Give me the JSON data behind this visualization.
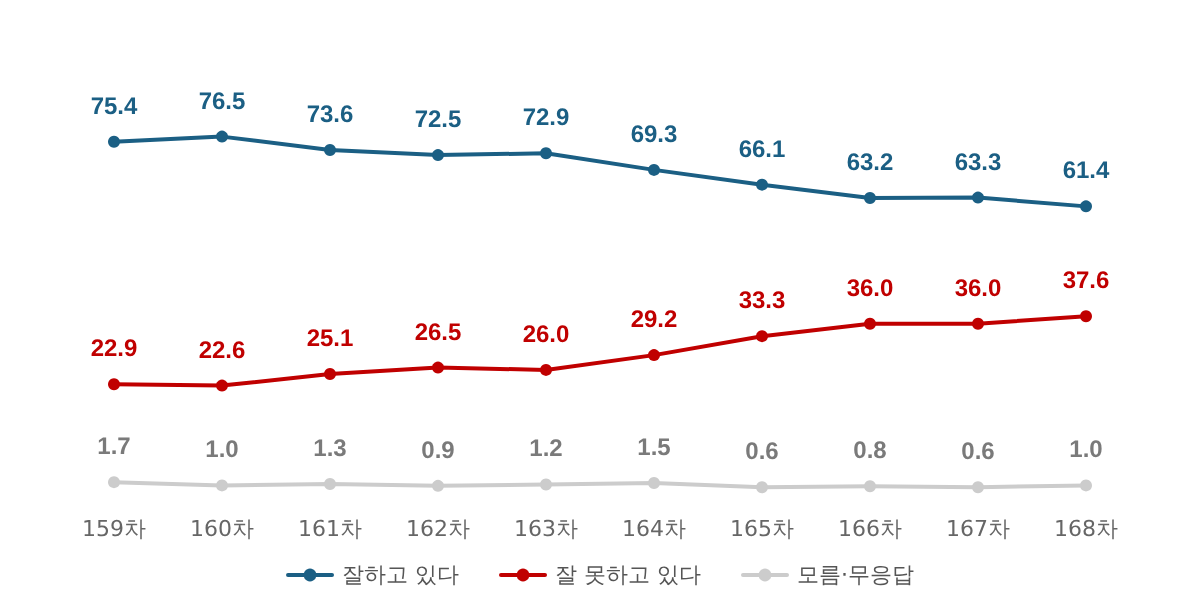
{
  "chart_data": {
    "type": "line",
    "categories": [
      "159차",
      "160차",
      "161차",
      "162차",
      "163차",
      "164차",
      "165차",
      "166차",
      "167차",
      "168차"
    ],
    "series": [
      {
        "name": "잘하고 있다",
        "color": "#1b5f84",
        "values": [
          75.4,
          76.5,
          73.6,
          72.5,
          72.9,
          69.3,
          66.1,
          63.2,
          63.3,
          61.4
        ],
        "value_labels": [
          "75.4",
          "76.5",
          "73.6",
          "72.5",
          "72.9",
          "69.3",
          "66.1",
          "63.2",
          "63.3",
          "61.4"
        ]
      },
      {
        "name": "잘 못하고 있다",
        "color": "#c00000",
        "values": [
          22.9,
          22.6,
          25.1,
          26.5,
          26.0,
          29.2,
          33.3,
          36.0,
          36.0,
          37.6
        ],
        "value_labels": [
          "22.9",
          "22.6",
          "25.1",
          "26.5",
          "26.0",
          "29.2",
          "33.3",
          "36.0",
          "36.0",
          "37.6"
        ]
      },
      {
        "name": "모름·무응답",
        "color": "#cccccc",
        "values": [
          1.7,
          1.0,
          1.3,
          0.9,
          1.2,
          1.5,
          0.6,
          0.8,
          0.6,
          1.0
        ],
        "value_labels": [
          "1.7",
          "1.0",
          "1.3",
          "0.9",
          "1.2",
          "1.5",
          "0.6",
          "0.8",
          "0.6",
          "1.0"
        ]
      }
    ],
    "legend": "bottom",
    "marker": "circle",
    "line_style": "solid"
  }
}
